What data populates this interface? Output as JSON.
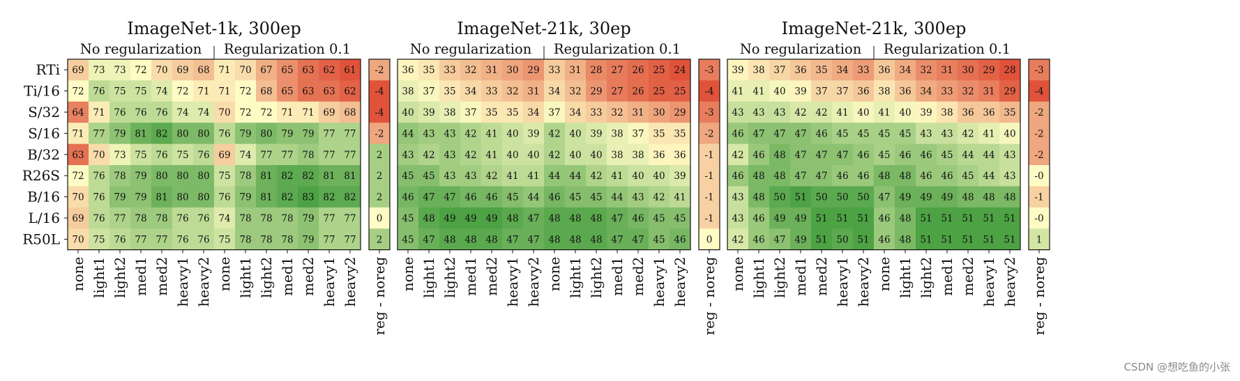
{
  "colors": {
    "low": "#e0533a",
    "mid": "#fefbc4",
    "high": "#4da244"
  },
  "watermark": "CSDN @想吃鱼的小张",
  "chart_data": {
    "type": "heatmap",
    "rows": [
      "RTi",
      "Ti/16",
      "S/32",
      "S/16",
      "B/32",
      "R26S",
      "B/16",
      "L/16",
      "R50L"
    ],
    "columns": [
      "none",
      "light1",
      "light2",
      "med1",
      "med2",
      "heavy1",
      "heavy2",
      "none",
      "light1",
      "light2",
      "med1",
      "med2",
      "heavy1",
      "heavy2"
    ],
    "groups": [
      "No regularization",
      "Regularization 0.1"
    ],
    "diff_column": "reg - noreg",
    "panels": [
      {
        "title": "ImageNet-1k, 300ep",
        "values": [
          [
            69,
            73,
            73,
            72,
            70,
            69,
            68,
            71,
            70,
            67,
            65,
            63,
            62,
            61
          ],
          [
            72,
            76,
            75,
            75,
            74,
            72,
            71,
            71,
            72,
            68,
            65,
            63,
            63,
            62
          ],
          [
            64,
            71,
            76,
            76,
            76,
            74,
            74,
            70,
            72,
            72,
            71,
            71,
            69,
            68
          ],
          [
            71,
            77,
            79,
            81,
            82,
            80,
            80,
            76,
            79,
            80,
            79,
            79,
            77,
            77
          ],
          [
            63,
            70,
            73,
            75,
            76,
            75,
            76,
            69,
            74,
            77,
            77,
            78,
            77,
            77
          ],
          [
            72,
            76,
            78,
            79,
            80,
            80,
            80,
            75,
            78,
            81,
            82,
            82,
            81,
            81
          ],
          [
            70,
            76,
            79,
            79,
            81,
            80,
            80,
            76,
            79,
            81,
            82,
            83,
            82,
            82
          ],
          [
            69,
            76,
            77,
            78,
            78,
            76,
            76,
            74,
            78,
            78,
            78,
            79,
            77,
            77
          ],
          [
            70,
            75,
            76,
            77,
            77,
            76,
            76,
            75,
            78,
            78,
            78,
            79,
            77,
            77
          ]
        ],
        "diff": [
          "-2",
          "-4",
          "-4",
          "-2",
          "2",
          "2",
          "2",
          "0",
          "2"
        ]
      },
      {
        "title": "ImageNet-21k, 30ep",
        "values": [
          [
            36,
            35,
            33,
            32,
            31,
            30,
            29,
            33,
            31,
            28,
            27,
            26,
            25,
            24
          ],
          [
            38,
            37,
            35,
            34,
            33,
            32,
            31,
            34,
            32,
            29,
            27,
            26,
            25,
            25
          ],
          [
            40,
            39,
            38,
            37,
            35,
            35,
            34,
            37,
            34,
            33,
            32,
            31,
            30,
            29
          ],
          [
            44,
            43,
            43,
            42,
            41,
            40,
            39,
            42,
            40,
            39,
            38,
            37,
            35,
            35
          ],
          [
            43,
            42,
            43,
            42,
            41,
            40,
            40,
            42,
            40,
            40,
            38,
            38,
            36,
            36
          ],
          [
            45,
            45,
            43,
            43,
            42,
            41,
            41,
            44,
            44,
            42,
            41,
            40,
            40,
            39
          ],
          [
            46,
            47,
            47,
            46,
            46,
            45,
            44,
            46,
            45,
            45,
            44,
            43,
            42,
            41
          ],
          [
            45,
            48,
            49,
            49,
            49,
            48,
            47,
            48,
            48,
            48,
            47,
            46,
            45,
            45
          ],
          [
            45,
            47,
            48,
            48,
            48,
            47,
            47,
            48,
            48,
            48,
            47,
            47,
            45,
            46
          ]
        ],
        "diff": [
          "-3",
          "-4",
          "-3",
          "-2",
          "-1",
          "-1",
          "-1",
          "-1",
          "0"
        ]
      },
      {
        "title": "ImageNet-21k, 300ep",
        "values": [
          [
            39,
            38,
            37,
            36,
            35,
            34,
            33,
            36,
            34,
            32,
            31,
            30,
            29,
            28
          ],
          [
            41,
            41,
            40,
            39,
            37,
            37,
            36,
            38,
            36,
            34,
            33,
            32,
            31,
            29
          ],
          [
            43,
            43,
            43,
            42,
            42,
            41,
            40,
            41,
            40,
            39,
            38,
            36,
            36,
            35
          ],
          [
            46,
            47,
            47,
            47,
            46,
            45,
            45,
            45,
            45,
            43,
            43,
            42,
            41,
            40
          ],
          [
            42,
            46,
            48,
            47,
            47,
            47,
            46,
            45,
            46,
            46,
            45,
            44,
            44,
            43
          ],
          [
            46,
            48,
            48,
            47,
            47,
            46,
            46,
            48,
            48,
            46,
            46,
            45,
            44,
            43
          ],
          [
            43,
            48,
            50,
            51,
            50,
            50,
            50,
            47,
            49,
            49,
            49,
            48,
            48,
            48
          ],
          [
            43,
            46,
            49,
            49,
            51,
            51,
            51,
            46,
            48,
            51,
            51,
            51,
            51,
            51
          ],
          [
            42,
            46,
            47,
            49,
            51,
            50,
            51,
            46,
            48,
            51,
            51,
            51,
            51,
            51
          ]
        ],
        "diff": [
          "-3",
          "-4",
          "-2",
          "-2",
          "-2",
          "-0",
          "-1",
          "-0",
          "1"
        ]
      }
    ]
  }
}
